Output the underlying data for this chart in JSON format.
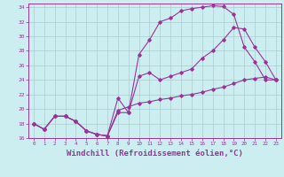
{
  "bg_color": "#cceef0",
  "grid_color": "#aacccc",
  "line_color": "#993399",
  "xlabel": "Windchill (Refroidissement éolien,°C)",
  "xlabel_fontsize": 6.5,
  "xlim": [
    -0.5,
    23.5
  ],
  "ylim": [
    16,
    34.5
  ],
  "yticks": [
    16,
    18,
    20,
    22,
    24,
    26,
    28,
    30,
    32,
    34
  ],
  "xticks": [
    0,
    1,
    2,
    3,
    4,
    5,
    6,
    7,
    8,
    9,
    10,
    11,
    12,
    13,
    14,
    15,
    16,
    17,
    18,
    19,
    20,
    21,
    22,
    23
  ],
  "curve1_x": [
    0,
    1,
    2,
    3,
    4,
    5,
    6,
    7,
    8,
    9,
    10,
    11,
    12,
    13,
    14,
    15,
    16,
    17,
    18,
    19,
    20,
    21,
    22,
    23
  ],
  "curve1_y": [
    18.0,
    17.2,
    19.0,
    19.0,
    18.3,
    17.0,
    16.5,
    16.3,
    19.5,
    19.5,
    27.5,
    29.5,
    32.0,
    32.5,
    33.5,
    33.8,
    34.0,
    34.2,
    34.1,
    33.0,
    28.5,
    26.5,
    24.0,
    24.0
  ],
  "curve2_x": [
    0,
    1,
    2,
    3,
    4,
    5,
    6,
    7,
    8,
    9,
    10,
    11,
    12,
    13,
    14,
    15,
    16,
    17,
    18,
    19,
    20,
    21,
    22,
    23
  ],
  "curve2_y": [
    18.0,
    17.2,
    19.0,
    19.0,
    18.3,
    17.0,
    16.5,
    16.3,
    21.5,
    19.5,
    24.5,
    25.0,
    24.0,
    24.5,
    25.0,
    25.5,
    27.0,
    28.0,
    29.5,
    31.2,
    31.0,
    28.5,
    26.5,
    24.0
  ],
  "curve3_x": [
    0,
    1,
    2,
    3,
    4,
    5,
    6,
    7,
    8,
    9,
    10,
    11,
    12,
    13,
    14,
    15,
    16,
    17,
    18,
    19,
    20,
    21,
    22,
    23
  ],
  "curve3_y": [
    18.0,
    17.2,
    19.0,
    19.0,
    18.3,
    17.0,
    16.5,
    16.3,
    19.8,
    20.3,
    20.8,
    21.0,
    21.3,
    21.5,
    21.8,
    22.0,
    22.3,
    22.7,
    23.0,
    23.5,
    24.0,
    24.2,
    24.4,
    24.0
  ]
}
